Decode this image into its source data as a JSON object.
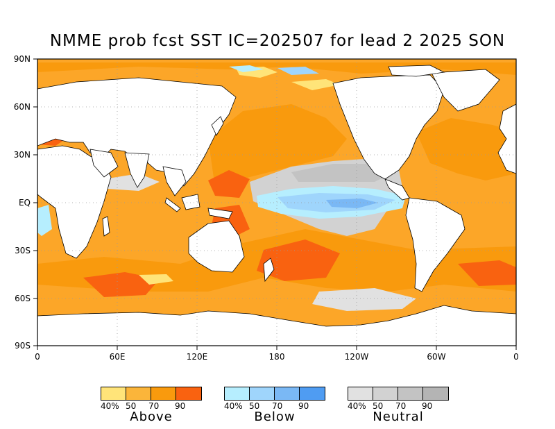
{
  "title": "NMME prob fcst SST IC=202507 for lead 2 2025 SON",
  "lat_labels": [
    "90N",
    "60N",
    "30N",
    "EQ",
    "30S",
    "60S",
    "90S"
  ],
  "lon_labels": [
    "0",
    "60E",
    "120E",
    "180",
    "120W",
    "60W",
    "0"
  ],
  "legend": [
    {
      "name": "Above",
      "ticks": [
        "40%",
        "50",
        "70",
        "90"
      ],
      "colors": [
        "#ffe479",
        "#fbb53a",
        "#f99a0d",
        "#f96210"
      ]
    },
    {
      "name": "Below",
      "ticks": [
        "40%",
        "50",
        "70",
        "90"
      ],
      "colors": [
        "#b6eefe",
        "#9fd5fc",
        "#7ab8f5",
        "#4f9cf2"
      ]
    },
    {
      "name": "Neutral",
      "ticks": [
        "40%",
        "50",
        "70",
        "90"
      ],
      "colors": [
        "#e1e1e1",
        "#d2d2d2",
        "#c3c3c3",
        "#b4b4b4"
      ]
    }
  ],
  "colors": {
    "land": "#ffffff",
    "ocean_default": "#fca628",
    "coast": "#000000"
  }
}
